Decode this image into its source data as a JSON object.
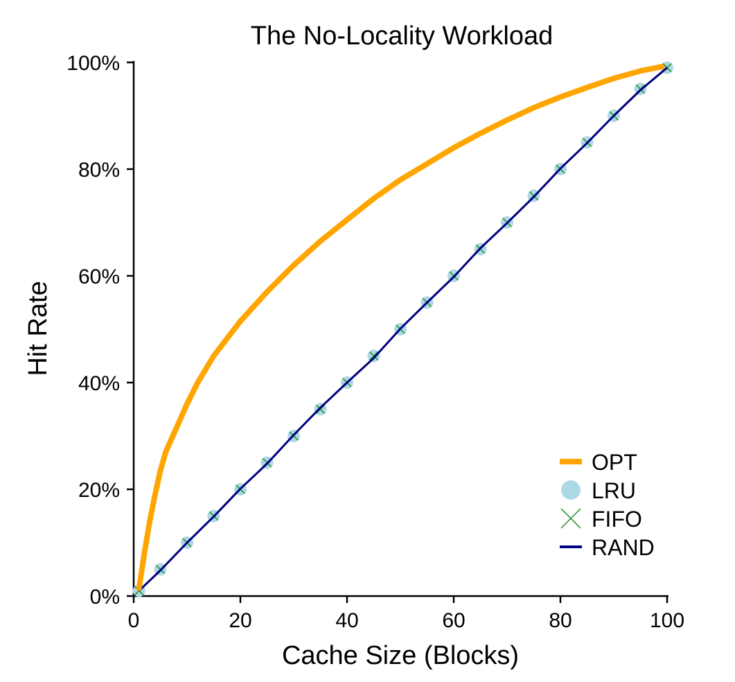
{
  "chart_data": {
    "type": "line",
    "title": "The No-Locality Workload",
    "xlabel": "Cache Size (Blocks)",
    "ylabel": "Hit Rate",
    "xlim": [
      0,
      100
    ],
    "ylim": [
      0,
      100
    ],
    "x_ticks": [
      0,
      20,
      40,
      60,
      80,
      100
    ],
    "x_tick_labels": [
      "0",
      "20",
      "40",
      "60",
      "80",
      "100"
    ],
    "y_ticks": [
      0,
      20,
      40,
      60,
      80,
      100
    ],
    "y_tick_labels": [
      "0%",
      "20%",
      "40%",
      "60%",
      "80%",
      "100%"
    ],
    "grid": false,
    "legend_position": "bottom-right",
    "series": [
      {
        "name": "OPT",
        "style": "line",
        "color": "#FFA500",
        "x": [
          1,
          2,
          3,
          4,
          5,
          6,
          8,
          10,
          12,
          15,
          20,
          25,
          30,
          35,
          40,
          45,
          50,
          55,
          60,
          65,
          70,
          75,
          80,
          85,
          90,
          95,
          99
        ],
        "y": [
          1.5,
          8,
          14,
          19,
          23.5,
          27,
          31.5,
          36,
          40,
          45,
          51.5,
          57,
          62,
          66.5,
          70.5,
          74.5,
          78,
          81,
          84,
          86.7,
          89.2,
          91.5,
          93.5,
          95.3,
          97,
          98.4,
          99.2
        ]
      },
      {
        "name": "LRU",
        "style": "marker-circle",
        "color": "#ADD8E6",
        "x": [
          1,
          5,
          10,
          15,
          20,
          25,
          30,
          35,
          40,
          45,
          50,
          55,
          60,
          65,
          70,
          75,
          80,
          85,
          90,
          95,
          100
        ],
        "y": [
          1,
          5,
          10,
          15,
          20,
          25,
          30,
          35,
          40,
          45,
          50,
          55,
          60,
          65,
          70,
          75,
          80,
          85,
          90,
          95,
          99
        ]
      },
      {
        "name": "FIFO",
        "style": "marker-x",
        "color": "#228B22",
        "x": [
          1,
          5,
          10,
          15,
          20,
          25,
          30,
          35,
          40,
          45,
          50,
          55,
          60,
          65,
          70,
          75,
          80,
          85,
          90,
          95,
          100
        ],
        "y": [
          1,
          5,
          10,
          15,
          20,
          25,
          30,
          35,
          40,
          45,
          50,
          55,
          60,
          65,
          70,
          75,
          80,
          85,
          90,
          95,
          99
        ]
      },
      {
        "name": "RAND",
        "style": "line",
        "color": "#000080",
        "x": [
          1,
          5,
          10,
          15,
          20,
          25,
          30,
          35,
          40,
          45,
          50,
          55,
          60,
          65,
          70,
          75,
          80,
          85,
          90,
          95,
          100
        ],
        "y": [
          1,
          4.8,
          10,
          14.9,
          20.1,
          24.8,
          30.2,
          35.3,
          40,
          44.6,
          50.1,
          55,
          59.8,
          65.2,
          69.9,
          74.8,
          80.1,
          84.9,
          90,
          94.8,
          99
        ]
      }
    ]
  }
}
